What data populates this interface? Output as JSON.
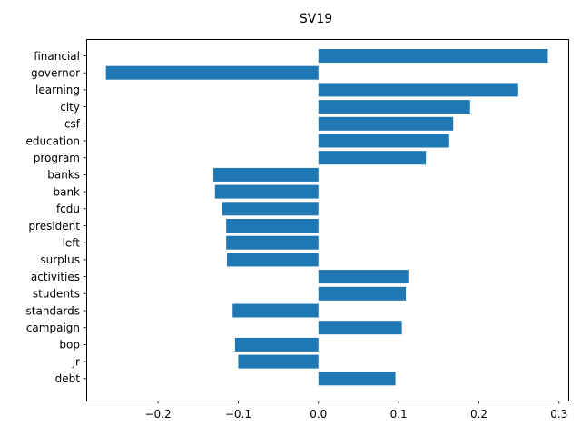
{
  "chart_data": {
    "type": "bar",
    "orientation": "horizontal",
    "title": "SV19",
    "xlabel": "",
    "ylabel": "",
    "xlim": [
      -0.2895,
      0.3115
    ],
    "xticks": [
      -0.2,
      -0.1,
      0.0,
      0.1,
      0.2,
      0.3
    ],
    "xtick_labels": [
      "−0.2",
      "−0.1",
      "0.0",
      "0.1",
      "0.2",
      "0.3"
    ],
    "categories": [
      "financial",
      "governor",
      "learning",
      "city",
      "csf",
      "education",
      "program",
      "banks",
      "bank",
      "fcdu",
      "president",
      "left",
      "surplus",
      "activities",
      "students",
      "standards",
      "campaign",
      "bop",
      "jr",
      "debt"
    ],
    "values": [
      0.286,
      -0.265,
      0.249,
      0.189,
      0.168,
      0.163,
      0.134,
      -0.131,
      -0.129,
      -0.12,
      -0.115,
      -0.115,
      -0.114,
      0.112,
      0.109,
      -0.107,
      0.104,
      -0.104,
      -0.1,
      0.096
    ],
    "bar_color": "#1f77b4",
    "grid": false,
    "legend": "none"
  }
}
